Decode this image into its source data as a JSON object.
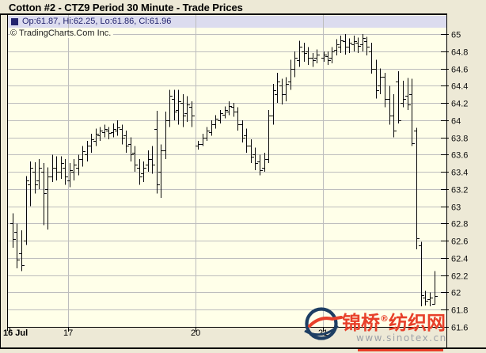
{
  "window": {
    "title": "Cotton #2 - CTZ9 Period 30 Minute - Trade Prices"
  },
  "info_band": {
    "ohlc_summary": "Op:61.87, Hi:62.25, Lo:61.86, Cl:61.96"
  },
  "copyright": "© TradingCharts.Com Inc.",
  "watermark": {
    "brand": "锦桥",
    "registered_mark": "®",
    "brand_suffix": "纺织网",
    "url": "www.sinotex.cn"
  },
  "colors": {
    "background": "#EDE9D6",
    "plot_bg": "#FFFFE9",
    "band_bg": "#DCDCEF",
    "grid": "#BDBDBD",
    "bar": "#0A0A0A",
    "frame": "#000000",
    "navy_text": "#23246E",
    "watermark_red": "#E8402A",
    "watermark_navy": "#1D3E63",
    "watermark_gray": "#9DA2A8"
  },
  "chart_data": {
    "type": "ohlc-bar",
    "title": "Cotton #2 - CTZ9 Period 30 Minute - Trade Prices",
    "xlabel": "",
    "ylabel": "",
    "y_min": 61.6,
    "y_max": 65.0,
    "y_step": 0.2,
    "grid": true,
    "y_tick_labels": [
      "65",
      "64.8",
      "64.6",
      "64.4",
      "64.2",
      "64",
      "63.8",
      "63.6",
      "63.4",
      "63.2",
      "63",
      "62.8",
      "62.6",
      "62.4",
      "62.2",
      "62",
      "61.8",
      "61.6"
    ],
    "x_axis_labels": [
      {
        "text": "16 Jul",
        "x": 12,
        "bold": true
      },
      {
        "text": "17",
        "x": 86,
        "bold": false
      },
      {
        "text": "20",
        "x": 247,
        "bold": false
      },
      {
        "text": "21",
        "x": 408,
        "bold": false
      }
    ],
    "day_gridlines_x": [
      86,
      247,
      408
    ],
    "x_ticks": [
      12,
      86,
      247,
      408
    ],
    "bars_format": [
      "x_px",
      "open",
      "high",
      "low",
      "close"
    ],
    "bars": [
      [
        16,
        62.8,
        62.92,
        62.52,
        62.62
      ],
      [
        21,
        62.7,
        62.8,
        62.28,
        62.38
      ],
      [
        27,
        62.45,
        62.72,
        62.25,
        62.32
      ],
      [
        33,
        62.6,
        63.35,
        62.55,
        63.3
      ],
      [
        38,
        63.25,
        63.52,
        63.0,
        63.45
      ],
      [
        44,
        63.4,
        63.51,
        63.15,
        63.25
      ],
      [
        49,
        63.3,
        63.55,
        63.2,
        63.45
      ],
      [
        55,
        63.4,
        63.5,
        62.78,
        63.15
      ],
      [
        60,
        63.2,
        63.45,
        62.73,
        63.35
      ],
      [
        66,
        63.35,
        63.6,
        63.28,
        63.45
      ],
      [
        71,
        63.45,
        63.58,
        63.3,
        63.4
      ],
      [
        77,
        63.4,
        63.58,
        63.32,
        63.5
      ],
      [
        82,
        63.45,
        63.55,
        63.25,
        63.35
      ],
      [
        88,
        63.3,
        63.5,
        63.22,
        63.42
      ],
      [
        93,
        63.4,
        63.55,
        63.3,
        63.48
      ],
      [
        99,
        63.45,
        63.6,
        63.36,
        63.55
      ],
      [
        104,
        63.55,
        63.7,
        63.46,
        63.64
      ],
      [
        110,
        63.6,
        63.76,
        63.52,
        63.7
      ],
      [
        115,
        63.7,
        63.84,
        63.62,
        63.78
      ],
      [
        121,
        63.76,
        63.9,
        63.7,
        63.84
      ],
      [
        126,
        63.82,
        63.92,
        63.76,
        63.88
      ],
      [
        132,
        63.86,
        63.95,
        63.8,
        63.9
      ],
      [
        137,
        63.88,
        63.92,
        63.78,
        63.85
      ],
      [
        143,
        63.86,
        63.96,
        63.8,
        63.9
      ],
      [
        148,
        63.88,
        64.0,
        63.82,
        63.92
      ],
      [
        154,
        63.9,
        63.95,
        63.72,
        63.8
      ],
      [
        159,
        63.82,
        63.88,
        63.62,
        63.7
      ],
      [
        165,
        63.72,
        63.8,
        63.52,
        63.6
      ],
      [
        170,
        63.62,
        63.7,
        63.4,
        63.48
      ],
      [
        176,
        63.45,
        63.55,
        63.25,
        63.35
      ],
      [
        181,
        63.38,
        63.52,
        63.28,
        63.45
      ],
      [
        187,
        63.48,
        63.65,
        63.4,
        63.55
      ],
      [
        192,
        63.55,
        63.7,
        63.38,
        63.48
      ],
      [
        198,
        63.9,
        64.11,
        63.15,
        63.25
      ],
      [
        203,
        63.4,
        63.72,
        63.1,
        63.65
      ],
      [
        209,
        63.65,
        64.1,
        63.55,
        64.0
      ],
      [
        214,
        64.0,
        64.35,
        63.92,
        64.28
      ],
      [
        220,
        64.25,
        64.35,
        64.0,
        64.1
      ],
      [
        225,
        64.12,
        64.35,
        63.95,
        64.22
      ],
      [
        231,
        64.2,
        64.3,
        63.92,
        64.05
      ],
      [
        236,
        64.08,
        64.28,
        63.98,
        64.18
      ],
      [
        242,
        64.15,
        64.22,
        63.92,
        64.05
      ],
      [
        250,
        63.7,
        63.76,
        63.66,
        63.72
      ],
      [
        256,
        63.72,
        63.84,
        63.7,
        63.8
      ],
      [
        261,
        63.8,
        63.92,
        63.76,
        63.88
      ],
      [
        267,
        63.86,
        64.0,
        63.82,
        63.95
      ],
      [
        272,
        63.95,
        64.06,
        63.9,
        64.02
      ],
      [
        278,
        64.0,
        64.12,
        63.96,
        64.08
      ],
      [
        284,
        64.06,
        64.16,
        64.02,
        64.12
      ],
      [
        289,
        64.1,
        64.22,
        64.06,
        64.16
      ],
      [
        295,
        64.15,
        64.2,
        64.04,
        64.1
      ],
      [
        300,
        64.1,
        64.15,
        63.88,
        63.95
      ],
      [
        306,
        63.95,
        64.0,
        63.74,
        63.8
      ],
      [
        311,
        63.82,
        63.9,
        63.62,
        63.7
      ],
      [
        317,
        63.7,
        63.78,
        63.5,
        63.58
      ],
      [
        322,
        63.6,
        63.68,
        63.42,
        63.5
      ],
      [
        328,
        63.52,
        63.6,
        63.36,
        63.42
      ],
      [
        334,
        63.45,
        63.62,
        63.4,
        63.55
      ],
      [
        339,
        63.55,
        64.12,
        63.5,
        64.05
      ],
      [
        345,
        64.05,
        64.42,
        63.95,
        64.35
      ],
      [
        350,
        64.3,
        64.55,
        64.2,
        64.45
      ],
      [
        356,
        64.4,
        64.48,
        64.18,
        64.3
      ],
      [
        361,
        64.3,
        64.5,
        64.22,
        64.42
      ],
      [
        367,
        64.45,
        64.7,
        64.35,
        64.6
      ],
      [
        372,
        64.6,
        64.8,
        64.5,
        64.72
      ],
      [
        378,
        64.7,
        64.92,
        64.62,
        64.85
      ],
      [
        384,
        64.8,
        64.9,
        64.68,
        64.78
      ],
      [
        389,
        64.8,
        64.85,
        64.64,
        64.72
      ],
      [
        395,
        64.72,
        64.78,
        64.62,
        64.7
      ],
      [
        400,
        64.72,
        64.82,
        64.66,
        64.76
      ],
      [
        409,
        64.72,
        64.8,
        64.68,
        64.76
      ],
      [
        414,
        64.74,
        64.8,
        64.64,
        64.7
      ],
      [
        419,
        64.72,
        64.85,
        64.66,
        64.8
      ],
      [
        425,
        64.82,
        64.94,
        64.75,
        64.88
      ],
      [
        430,
        64.85,
        64.98,
        64.78,
        64.93
      ],
      [
        436,
        64.92,
        65.0,
        64.76,
        64.85
      ],
      [
        441,
        64.85,
        64.95,
        64.78,
        64.9
      ],
      [
        447,
        64.88,
        64.98,
        64.8,
        64.92
      ],
      [
        452,
        64.9,
        64.96,
        64.78,
        64.86
      ],
      [
        458,
        64.88,
        65.0,
        64.8,
        64.95
      ],
      [
        463,
        64.92,
        64.97,
        64.75,
        64.85
      ],
      [
        469,
        64.8,
        64.9,
        64.54,
        64.6
      ],
      [
        475,
        64.6,
        64.7,
        64.25,
        64.35
      ],
      [
        480,
        64.4,
        64.6,
        64.3,
        64.5
      ],
      [
        486,
        64.5,
        64.55,
        64.15,
        64.25
      ],
      [
        492,
        64.25,
        64.4,
        63.95,
        64.05
      ],
      [
        497,
        64.05,
        64.3,
        63.8,
        63.88
      ],
      [
        503,
        64.45,
        64.57,
        63.96,
        64.0
      ],
      [
        509,
        64.2,
        64.46,
        64.15,
        64.25
      ],
      [
        515,
        64.28,
        64.49,
        64.12,
        64.18
      ],
      [
        520,
        64.3,
        64.48,
        63.7,
        63.73
      ],
      [
        526,
        63.88,
        63.91,
        62.5,
        62.63
      ],
      [
        532,
        62.55,
        62.59,
        61.84,
        61.97
      ],
      [
        537,
        61.94,
        62.02,
        61.85,
        61.9
      ],
      [
        543,
        61.92,
        62.0,
        61.84,
        61.94
      ],
      [
        549,
        61.87,
        62.25,
        61.86,
        61.96
      ]
    ]
  }
}
